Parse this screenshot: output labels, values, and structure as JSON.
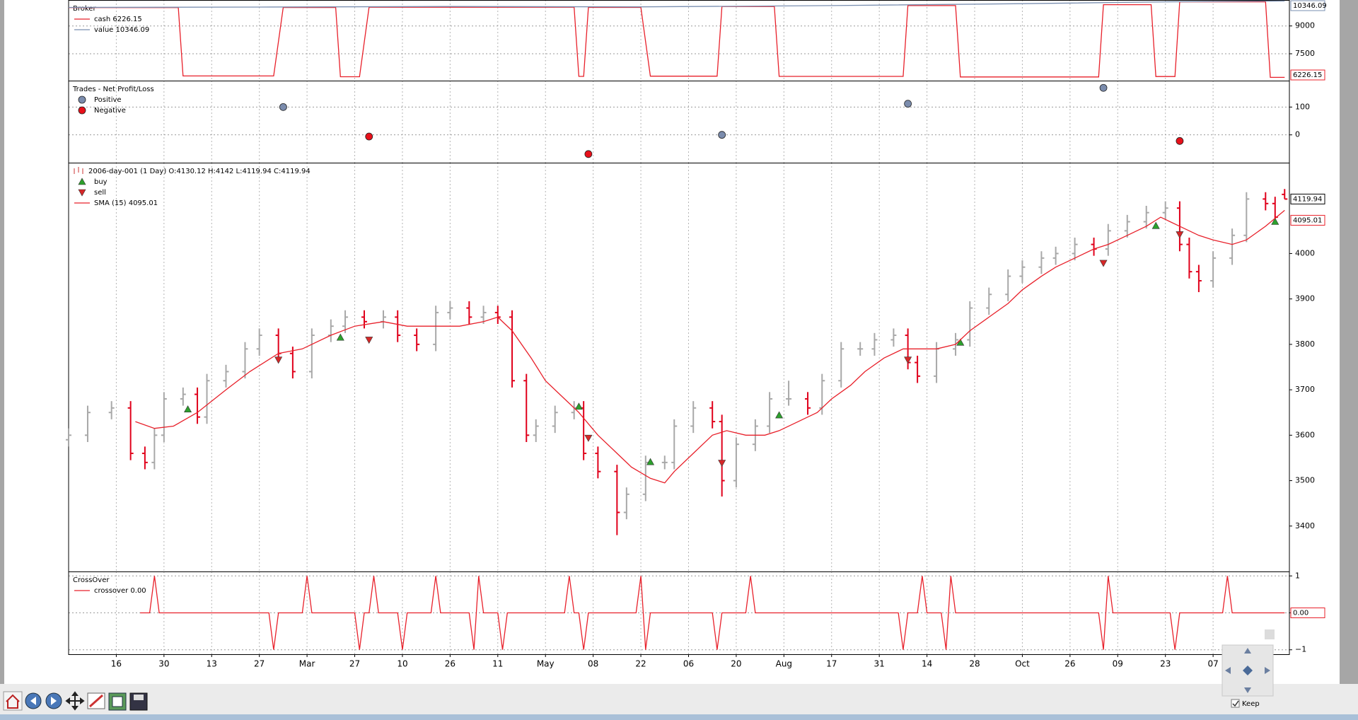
{
  "chart_data": [
    {
      "type": "line",
      "title": "Broker",
      "ylim": [
        6050,
        10400
      ],
      "yticks": [
        7500,
        9000
      ],
      "ygrid": true,
      "series": [
        {
          "name": "cash 6226.15",
          "color": "#e8202a",
          "x": [
            0,
            23,
            24,
            43,
            45,
            56,
            57,
            61,
            63,
            106,
            107,
            108,
            109,
            120,
            122,
            136,
            137,
            148,
            149,
            175,
            176,
            186,
            187,
            216,
            217,
            227,
            228,
            232,
            233,
            251,
            252,
            255
          ],
          "values": [
            9990,
            9990,
            6300,
            6300,
            9995,
            9995,
            6260,
            6260,
            10010,
            10010,
            6280,
            6280,
            10000,
            10000,
            6290,
            6290,
            10050,
            10050,
            6280,
            6280,
            10100,
            10100,
            6250,
            6250,
            10150,
            10150,
            6270,
            6270,
            10300,
            10300,
            6226.15,
            6226.15
          ]
        },
        {
          "name": "value 10346.09",
          "color": "#7a8fb0",
          "x": [
            0,
            40,
            80,
            120,
            160,
            200,
            230,
            255
          ],
          "values": [
            10000,
            10020,
            10050,
            10030,
            10100,
            10200,
            10300,
            10346.09
          ]
        }
      ]
    },
    {
      "type": "scatter",
      "title": "Trades - Net Profit/Loss",
      "ylim": [
        -100,
        195
      ],
      "yticks": [
        0,
        100
      ],
      "ygrid": true,
      "series": [
        {
          "name": "Positive",
          "color": "#7b8cad",
          "x": [
            45,
            137,
            176,
            217
          ],
          "values": [
            100,
            0,
            112,
            169
          ]
        },
        {
          "name": "Negative",
          "color": "#e8101a",
          "x": [
            63,
            109,
            233
          ],
          "values": [
            -6,
            -69,
            -22
          ]
        }
      ]
    },
    {
      "type": "ohlc",
      "title": "2006-day-001 (1 Day) O:4130.12 H:4142 L:4119.94 C:4119.94",
      "ylim": [
        3300,
        4200
      ],
      "yticks": [
        3400,
        3500,
        3600,
        3700,
        3800,
        3900,
        4000
      ],
      "ygrid": false,
      "up_color": "#a8a8a8",
      "down_color": "#e0001b",
      "x": [
        0,
        4,
        9,
        13,
        16,
        18,
        20,
        24,
        27,
        29,
        33,
        37,
        40,
        44,
        47,
        51,
        55,
        58,
        62,
        66,
        69,
        73,
        77,
        80,
        84,
        87,
        90,
        93,
        96,
        98,
        102,
        106,
        108,
        111,
        115,
        117,
        121,
        125,
        127,
        131,
        135,
        137,
        140,
        144,
        147,
        151,
        155,
        158,
        162,
        166,
        169,
        173,
        176,
        178,
        182,
        186,
        189,
        193,
        197,
        200,
        204,
        207,
        211,
        215,
        218,
        222,
        226,
        230,
        233,
        235,
        237,
        240,
        244,
        247,
        251,
        253,
        255
      ],
      "open": [
        3590,
        3600,
        3650,
        3660,
        3560,
        3540,
        3600,
        3680,
        3690,
        3640,
        3720,
        3740,
        3790,
        3820,
        3780,
        3740,
        3820,
        3840,
        3860,
        3850,
        3860,
        3820,
        3800,
        3870,
        3880,
        3860,
        3870,
        3860,
        3720,
        3600,
        3620,
        3650,
        3660,
        3560,
        3520,
        3430,
        3470,
        3540,
        3540,
        3620,
        3660,
        3630,
        3500,
        3580,
        3620,
        3680,
        3680,
        3660,
        3720,
        3790,
        3790,
        3810,
        3820,
        3760,
        3730,
        3790,
        3810,
        3880,
        3910,
        3950,
        3970,
        3990,
        4000,
        4020,
        4010,
        4050,
        4070,
        4090,
        4100,
        4020,
        3960,
        3940,
        3990,
        4040,
        4120,
        4110,
        4130.12
      ],
      "high": [
        3615,
        3665,
        3675,
        3675,
        3575,
        3615,
        3695,
        3705,
        3705,
        3735,
        3755,
        3805,
        3835,
        3835,
        3795,
        3835,
        3855,
        3875,
        3875,
        3875,
        3875,
        3835,
        3885,
        3895,
        3895,
        3885,
        3885,
        3875,
        3735,
        3635,
        3665,
        3675,
        3675,
        3575,
        3535,
        3485,
        3555,
        3555,
        3635,
        3675,
        3675,
        3645,
        3595,
        3635,
        3695,
        3720,
        3695,
        3735,
        3805,
        3805,
        3825,
        3835,
        3835,
        3775,
        3805,
        3825,
        3895,
        3925,
        3965,
        3985,
        4005,
        4015,
        4035,
        4035,
        4065,
        4085,
        4105,
        4115,
        4115,
        4035,
        3975,
        4005,
        4055,
        4135,
        4135,
        4125,
        4142
      ],
      "low": [
        3575,
        3585,
        3635,
        3545,
        3525,
        3525,
        3585,
        3665,
        3625,
        3625,
        3705,
        3725,
        3775,
        3765,
        3725,
        3725,
        3805,
        3825,
        3835,
        3835,
        3805,
        3785,
        3785,
        3855,
        3845,
        3845,
        3845,
        3705,
        3585,
        3585,
        3605,
        3635,
        3545,
        3505,
        3380,
        3415,
        3455,
        3525,
        3525,
        3605,
        3615,
        3465,
        3485,
        3565,
        3605,
        3665,
        3645,
        3645,
        3705,
        3775,
        3775,
        3795,
        3745,
        3715,
        3715,
        3775,
        3795,
        3865,
        3895,
        3935,
        3955,
        3975,
        3985,
        3995,
        3995,
        4035,
        4055,
        4075,
        4005,
        3945,
        3915,
        3925,
        3975,
        4025,
        4095,
        4065,
        4119.94
      ],
      "close": [
        3600,
        3650,
        3660,
        3560,
        3540,
        3600,
        3680,
        3690,
        3640,
        3720,
        3740,
        3790,
        3820,
        3780,
        3740,
        3820,
        3840,
        3860,
        3850,
        3860,
        3820,
        3800,
        3870,
        3880,
        3860,
        3870,
        3860,
        3720,
        3600,
        3620,
        3650,
        3660,
        3560,
        3520,
        3430,
        3470,
        3540,
        3540,
        3620,
        3660,
        3630,
        3500,
        3580,
        3620,
        3680,
        3680,
        3660,
        3720,
        3790,
        3790,
        3810,
        3820,
        3760,
        3730,
        3790,
        3810,
        3880,
        3910,
        3950,
        3970,
        3990,
        4000,
        4020,
        4010,
        4050,
        4070,
        4090,
        4100,
        4020,
        3960,
        3940,
        3990,
        4040,
        4120,
        4110,
        4080,
        4119.94
      ],
      "series": [
        {
          "name": "buy",
          "marker": "up",
          "color": "#2ca02c",
          "x": [
            25,
            57,
            107,
            122,
            149,
            187,
            228,
            253
          ],
          "values": [
            3657,
            3815,
            3663,
            3541,
            3644,
            3804,
            4061,
            4070
          ]
        },
        {
          "name": "sell",
          "marker": "down",
          "color": "#d62728",
          "x": [
            44,
            63,
            109,
            137,
            176,
            217,
            233
          ],
          "values": [
            3766,
            3810,
            3594,
            3539,
            3766,
            3979,
            4042
          ]
        },
        {
          "name": "SMA (15) 4095.01",
          "color": "#e8202a",
          "x": [
            14,
            18,
            22,
            27,
            33,
            38,
            44,
            49,
            55,
            60,
            66,
            71,
            77,
            82,
            87,
            90,
            93,
            97,
            100,
            104,
            107,
            111,
            115,
            118,
            122,
            125,
            127,
            131,
            135,
            138,
            142,
            146,
            149,
            153,
            157,
            160,
            164,
            167,
            171,
            175,
            178,
            182,
            186,
            189,
            193,
            197,
            200,
            204,
            207,
            211,
            215,
            218,
            222,
            226,
            229,
            233,
            237,
            240,
            244,
            247,
            251,
            255
          ],
          "values": [
            3630,
            3615,
            3620,
            3650,
            3700,
            3740,
            3780,
            3790,
            3820,
            3840,
            3850,
            3840,
            3840,
            3840,
            3850,
            3860,
            3830,
            3770,
            3720,
            3680,
            3650,
            3600,
            3560,
            3530,
            3505,
            3495,
            3520,
            3560,
            3600,
            3610,
            3600,
            3600,
            3610,
            3630,
            3650,
            3680,
            3710,
            3740,
            3770,
            3790,
            3790,
            3790,
            3800,
            3830,
            3860,
            3890,
            3920,
            3950,
            3970,
            3990,
            4010,
            4020,
            4040,
            4060,
            4080,
            4060,
            4040,
            4030,
            4020,
            4030,
            4060,
            4095.01
          ]
        }
      ]
    },
    {
      "type": "line",
      "title": "CrossOver",
      "ylim": [
        -1.12,
        1.12
      ],
      "yticks": [
        {
          "value": -1,
          "label": "−1"
        },
        0,
        1
      ],
      "ygrid": true,
      "last_label": "0.00",
      "series": [
        {
          "name": "crossover 0.00",
          "color": "#e8202a",
          "x": [
            15,
            17,
            18,
            19,
            42,
            43,
            44,
            49,
            50,
            51,
            60,
            61,
            62,
            63,
            64,
            65,
            69,
            70,
            71,
            76,
            77,
            78,
            84,
            85,
            86,
            87,
            90,
            91,
            92,
            104,
            105,
            106,
            107,
            108,
            109,
            119,
            120,
            121,
            122,
            135,
            136,
            137,
            142,
            143,
            144,
            174,
            175,
            176,
            178,
            179,
            180,
            183,
            184,
            185,
            186,
            216,
            217,
            218,
            219,
            231,
            232,
            233,
            242,
            243,
            244,
            255
          ],
          "values": [
            0,
            0,
            1,
            0,
            0,
            -1,
            0,
            0,
            1,
            0,
            0,
            -1,
            0,
            0,
            1,
            0,
            0,
            -1,
            0,
            0,
            1,
            0,
            0,
            -1,
            1,
            0,
            0,
            -1,
            0,
            0,
            1,
            0,
            0,
            -1,
            0,
            0,
            1,
            -1,
            0,
            0,
            -1,
            0,
            0,
            1,
            0,
            0,
            -1,
            0,
            0,
            1,
            0,
            0,
            -1,
            1,
            0,
            0,
            -1,
            1,
            0,
            0,
            -1,
            0,
            0,
            1,
            0,
            0
          ]
        }
      ],
      "xlim": [
        0,
        256
      ],
      "xticks": [
        {
          "value": 10,
          "label": "16"
        },
        {
          "value": 20,
          "label": "30"
        },
        {
          "value": 30,
          "label": "13"
        },
        {
          "value": 40,
          "label": "27"
        },
        {
          "value": 50,
          "label": "Mar"
        },
        {
          "value": 60,
          "label": "27"
        },
        {
          "value": 70,
          "label": "10"
        },
        {
          "value": 80,
          "label": "26"
        },
        {
          "value": 90,
          "label": "11"
        },
        {
          "value": 100,
          "label": "May"
        },
        {
          "value": 110,
          "label": "08"
        },
        {
          "value": 120,
          "label": "22"
        },
        {
          "value": 130,
          "label": "06"
        },
        {
          "value": 140,
          "label": "20"
        },
        {
          "value": 150,
          "label": "Aug"
        },
        {
          "value": 160,
          "label": "17"
        },
        {
          "value": 170,
          "label": "31"
        },
        {
          "value": 180,
          "label": "14"
        },
        {
          "value": 190,
          "label": "28"
        },
        {
          "value": 200,
          "label": "Oct"
        },
        {
          "value": 210,
          "label": "26"
        },
        {
          "value": 220,
          "label": "09"
        },
        {
          "value": 230,
          "label": "23"
        },
        {
          "value": 240,
          "label": "07"
        }
      ]
    }
  ],
  "toolbar": {
    "keep": "Keep"
  }
}
